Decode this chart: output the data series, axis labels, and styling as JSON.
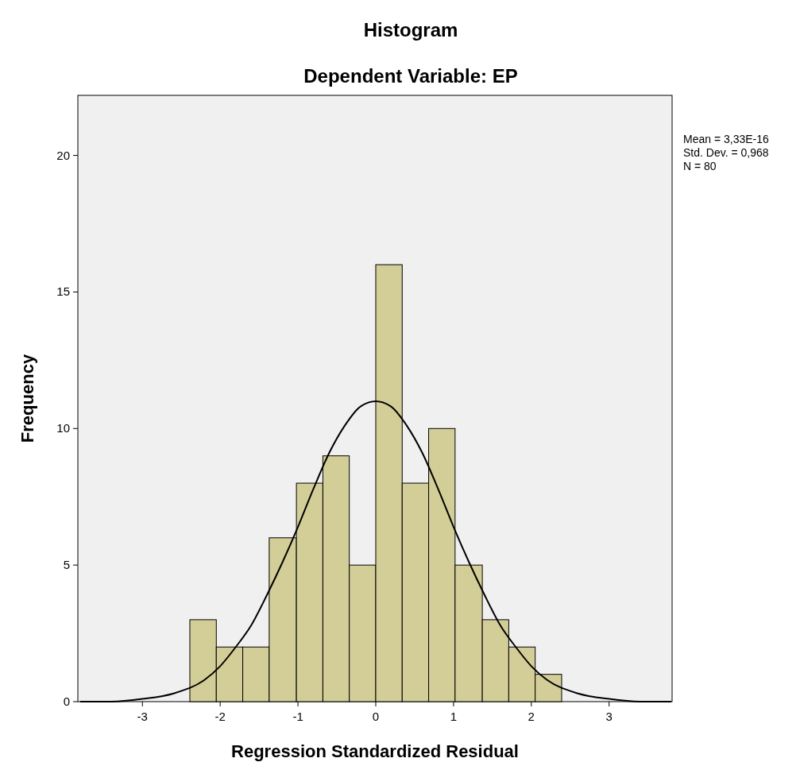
{
  "chart_data": {
    "type": "histogram",
    "title": "Histogram",
    "subtitle": "Dependent Variable: EP",
    "xlabel": "Regression Standardized Residual",
    "ylabel": "Frequency",
    "bins": [
      -2.39,
      -2.05,
      -1.71,
      -1.37,
      -1.02,
      -0.68,
      -0.34,
      0,
      0.34,
      0.68,
      1.02,
      1.37,
      1.71,
      2.05,
      2.39
    ],
    "values": [
      3,
      2,
      2,
      6,
      8,
      9,
      5,
      16,
      8,
      10,
      5,
      3,
      2,
      1
    ],
    "color": "#d3ce97",
    "series": [
      {
        "type": "line",
        "color": "#000000",
        "x": [
          -3.8,
          -3.4,
          -3,
          -2.6,
          -2.2,
          -2,
          -1.8,
          -1.6,
          -1.4,
          -1.2,
          -1,
          -0.8,
          -0.6,
          -0.4,
          -0.2,
          0,
          0.2,
          0.4,
          0.6,
          0.8,
          1,
          1.2,
          1.4,
          1.6,
          1.8,
          2,
          2.2,
          2.6,
          3,
          3.4,
          3.8
        ],
        "values": [
          0,
          0,
          0.1,
          0.3,
          0.8,
          1.3,
          2,
          2.8,
          3.9,
          5.1,
          6.4,
          7.8,
          9.1,
          10.1,
          10.8,
          11,
          10.8,
          10.1,
          9.1,
          7.8,
          6.4,
          5.1,
          3.9,
          2.8,
          2,
          1.3,
          0.8,
          0.3,
          0.1,
          0,
          0
        ]
      }
    ],
    "xlim": [
      -3.83,
      3.81
    ],
    "xticks": [
      -3,
      -2,
      -1,
      0,
      1,
      2,
      3
    ],
    "ylim": [
      0,
      22.2
    ],
    "yticks": [
      0,
      5,
      10,
      15,
      20
    ],
    "grid": false,
    "annotations": [
      "Mean = 3,33E-16",
      "Std. Dev. = 0,968",
      "N = 80"
    ]
  }
}
